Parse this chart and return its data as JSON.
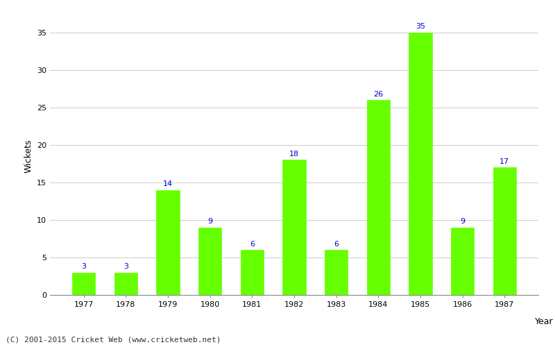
{
  "years": [
    "1977",
    "1978",
    "1979",
    "1980",
    "1981",
    "1982",
    "1983",
    "1984",
    "1985",
    "1986",
    "1987"
  ],
  "values": [
    3,
    3,
    14,
    9,
    6,
    18,
    6,
    26,
    35,
    9,
    17
  ],
  "bar_color": "#66ff00",
  "bar_edge_color": "#66ff00",
  "label_color": "#0000cc",
  "xlabel": "Year",
  "ylabel": "Wickets",
  "ylim": [
    0,
    37
  ],
  "yticks": [
    0,
    5,
    10,
    15,
    20,
    25,
    30,
    35
  ],
  "footer": "(C) 2001-2015 Cricket Web (www.cricketweb.net)",
  "background_color": "#ffffff",
  "label_fontsize": 8,
  "axis_label_fontsize": 9,
  "tick_fontsize": 8,
  "footer_fontsize": 8
}
